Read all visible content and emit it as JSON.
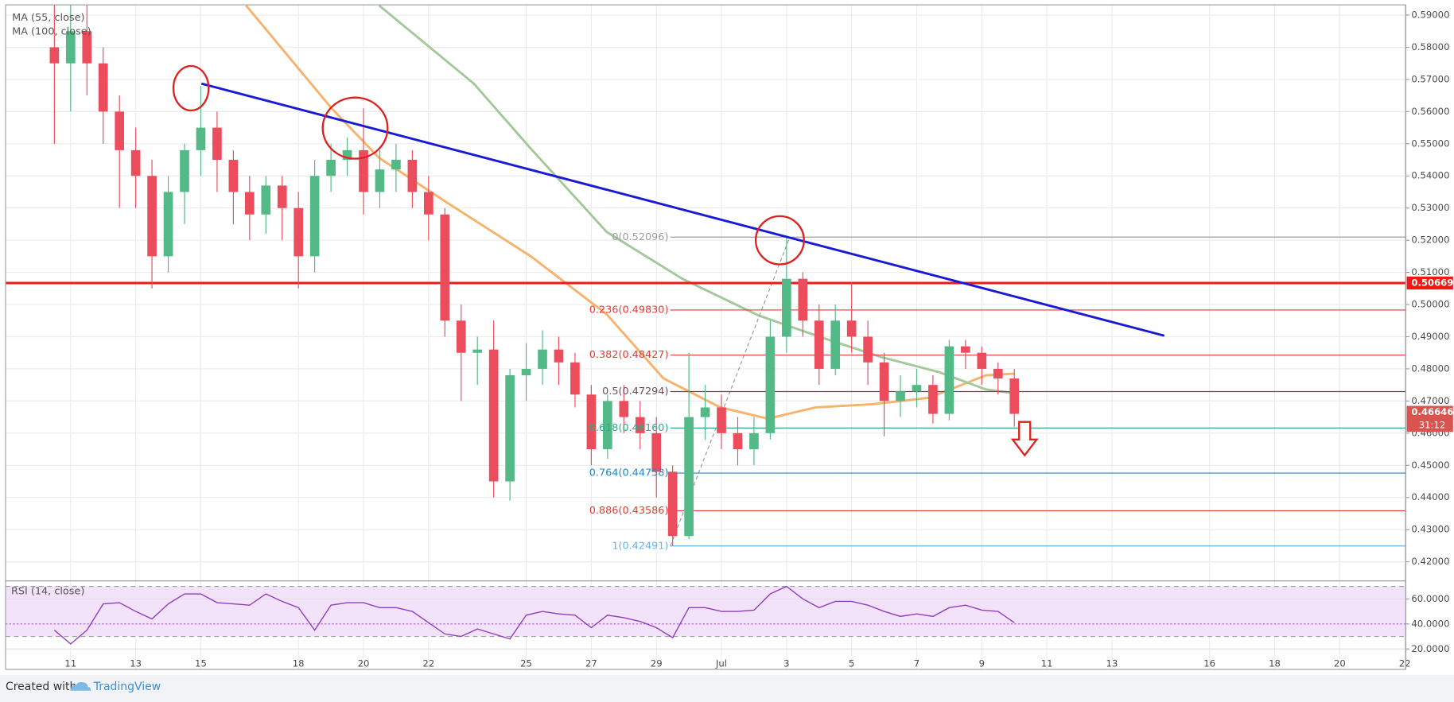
{
  "ui": {
    "footer_prefix": "Created with",
    "footer_brand": "TradingView"
  },
  "chart_data": {
    "type": "candlestick",
    "xlim": [
      9,
      52.03
    ],
    "xticks": [
      11,
      13,
      15,
      18,
      20,
      22,
      25,
      27,
      29,
      {
        "value": 31,
        "label": "Jul"
      },
      {
        "value": 33,
        "label": "3"
      },
      {
        "value": 35,
        "label": "5"
      },
      {
        "value": 37,
        "label": "7"
      },
      {
        "value": 39,
        "label": "9"
      },
      {
        "value": 41,
        "label": "11"
      },
      {
        "value": 43,
        "label": "13"
      },
      {
        "value": 46,
        "label": "16"
      },
      {
        "value": 48,
        "label": "18"
      },
      {
        "value": 50,
        "label": "20"
      },
      {
        "value": 52,
        "label": "22"
      }
    ],
    "ylim": [
      0.4145,
      0.5932
    ],
    "yticks": [
      {
        "value": 0.59,
        "label": "0.59000"
      },
      {
        "value": 0.58,
        "label": "0.58000"
      },
      {
        "value": 0.57,
        "label": "0.57000"
      },
      {
        "value": 0.56,
        "label": "0.56000"
      },
      {
        "value": 0.55,
        "label": "0.55000"
      },
      {
        "value": 0.54,
        "label": "0.54000"
      },
      {
        "value": 0.53,
        "label": "0.53000"
      },
      {
        "value": 0.52,
        "label": "0.52000"
      },
      {
        "value": 0.51,
        "label": "0.51000"
      },
      {
        "value": 0.5,
        "label": "0.50000"
      },
      {
        "value": 0.49,
        "label": "0.49000"
      },
      {
        "value": 0.48,
        "label": "0.48000"
      },
      {
        "value": 0.47,
        "label": "0.47000"
      },
      {
        "value": 0.46,
        "label": "0.46000"
      },
      {
        "value": 0.45,
        "label": "0.45000"
      },
      {
        "value": 0.44,
        "label": "0.44000"
      },
      {
        "value": 0.43,
        "label": "0.43000"
      },
      {
        "value": 0.42,
        "label": "0.42000"
      }
    ],
    "grid": true,
    "up_color": "#53b987",
    "down_color": "#eb4d5c",
    "x": [
      10.5,
      11,
      11.5,
      12,
      12.5,
      13,
      13.5,
      14,
      14.5,
      15,
      15.5,
      16,
      16.5,
      17,
      17.5,
      18,
      18.5,
      19,
      19.5,
      20,
      20.5,
      21,
      21.5,
      22,
      22.5,
      23,
      23.5,
      24,
      24.5,
      25,
      25.5,
      26,
      26.5,
      27,
      27.5,
      28,
      28.5,
      29,
      29.5,
      30,
      30.5,
      31,
      31.5,
      32,
      32.5,
      33,
      33.5,
      34,
      34.5,
      35,
      35.5,
      36,
      36.5,
      37,
      37.5,
      38,
      38.5,
      39,
      39.5,
      40
    ],
    "open": [
      0.58,
      0.575,
      0.585,
      0.575,
      0.56,
      0.548,
      0.54,
      0.515,
      0.535,
      0.548,
      0.555,
      0.545,
      0.535,
      0.528,
      0.537,
      0.53,
      0.515,
      0.54,
      0.545,
      0.548,
      0.535,
      0.542,
      0.545,
      0.535,
      0.528,
      0.495,
      0.485,
      0.486,
      0.445,
      0.478,
      0.48,
      0.486,
      0.482,
      0.472,
      0.455,
      0.47,
      0.465,
      0.46,
      0.448,
      0.428,
      0.465,
      0.468,
      0.46,
      0.455,
      0.46,
      0.49,
      0.508,
      0.495,
      0.48,
      0.495,
      0.49,
      0.482,
      0.47,
      0.473,
      0.475,
      0.466,
      0.487,
      0.485,
      0.48,
      0.477
    ],
    "high": [
      0.595,
      0.6,
      0.595,
      0.58,
      0.565,
      0.555,
      0.545,
      0.54,
      0.55,
      0.568,
      0.56,
      0.548,
      0.54,
      0.54,
      0.54,
      0.535,
      0.545,
      0.55,
      0.552,
      0.561,
      0.548,
      0.55,
      0.548,
      0.54,
      0.53,
      0.5,
      0.49,
      0.495,
      0.48,
      0.488,
      0.492,
      0.49,
      0.485,
      0.475,
      0.472,
      0.475,
      0.47,
      0.465,
      0.45,
      0.485,
      0.475,
      0.472,
      0.465,
      0.465,
      0.495,
      0.521,
      0.51,
      0.5,
      0.5,
      0.507,
      0.495,
      0.485,
      0.478,
      0.48,
      0.478,
      0.489,
      0.489,
      0.487,
      0.482,
      0.48
    ],
    "low": [
      0.55,
      0.56,
      0.565,
      0.55,
      0.53,
      0.53,
      0.505,
      0.51,
      0.525,
      0.54,
      0.535,
      0.525,
      0.52,
      0.522,
      0.52,
      0.505,
      0.51,
      0.535,
      0.54,
      0.528,
      0.53,
      0.535,
      0.53,
      0.52,
      0.49,
      0.47,
      0.475,
      0.44,
      0.439,
      0.47,
      0.475,
      0.475,
      0.468,
      0.45,
      0.452,
      0.46,
      0.455,
      0.44,
      0.425,
      0.427,
      0.458,
      0.455,
      0.45,
      0.45,
      0.458,
      0.485,
      0.49,
      0.475,
      0.478,
      0.485,
      0.475,
      0.459,
      0.465,
      0.468,
      0.463,
      0.464,
      0.48,
      0.475,
      0.472,
      0.462
    ],
    "close": [
      0.575,
      0.585,
      0.575,
      0.56,
      0.548,
      0.54,
      0.515,
      0.535,
      0.548,
      0.555,
      0.545,
      0.535,
      0.528,
      0.537,
      0.53,
      0.515,
      0.54,
      0.545,
      0.548,
      0.535,
      0.542,
      0.545,
      0.535,
      0.528,
      0.495,
      0.485,
      0.486,
      0.445,
      0.478,
      0.48,
      0.486,
      0.482,
      0.472,
      0.455,
      0.47,
      0.465,
      0.46,
      0.448,
      0.428,
      0.465,
      0.468,
      0.46,
      0.455,
      0.46,
      0.49,
      0.508,
      0.495,
      0.48,
      0.495,
      0.49,
      0.482,
      0.47,
      0.473,
      0.475,
      0.466,
      0.487,
      0.485,
      0.48,
      0.477,
      0.466
    ],
    "overlays": [
      {
        "name": "MA (55, close)",
        "color": "#f7b26e",
        "x": [
          16.39,
          19.02,
          20.48,
          22.52,
          25.14,
          27.47,
          29.22,
          30.97,
          32.43,
          33.89,
          35.64,
          37.38,
          39.13,
          40
        ],
        "values": [
          0.593,
          0.561,
          0.5456,
          0.532,
          0.515,
          0.497,
          0.477,
          0.468,
          0.4645,
          0.468,
          0.469,
          0.471,
          0.478,
          0.4785
        ]
      },
      {
        "name": "MA (100, close)",
        "color": "#a3c99a",
        "x": [
          20.48,
          23.39,
          25.14,
          27.47,
          29.8,
          32.14,
          34.18,
          35.93,
          37.68,
          39.13,
          40
        ],
        "values": [
          0.593,
          0.5687,
          0.5485,
          0.5226,
          0.508,
          0.4966,
          0.4894,
          0.4836,
          0.479,
          0.4736,
          0.4724
        ]
      }
    ],
    "trendline": {
      "color": "#1a1ad6",
      "x": [
        15.02,
        44.61
      ],
      "values": [
        0.5687,
        0.4903
      ]
    },
    "horizontal_line": {
      "value": 0.50669,
      "label": "0.50669",
      "color": "#f21818"
    },
    "last_price": {
      "value": 0.46646,
      "label": "0.46646",
      "countdown": "31:12",
      "color": "#d9534f"
    },
    "fibonacci": {
      "x": [
        29.43,
        33.1
      ],
      "values": [
        0.42491,
        0.52096
      ],
      "levels": [
        {
          "value": 0.52096,
          "label": "0(0.52096)",
          "color": "#9e9e9e"
        },
        {
          "value": 0.4983,
          "label": "0.236(0.49830)",
          "color": "#e53935"
        },
        {
          "value": 0.48427,
          "label": "0.382(0.48427)",
          "color": "#e53935"
        },
        {
          "value": 0.47294,
          "label": "0.5(0.47294)",
          "color": "#6d4c5a"
        },
        {
          "value": 0.4616,
          "label": "0.618(0.46160)",
          "color": "#26b08c"
        },
        {
          "value": 0.44758,
          "label": "0.764(0.44758)",
          "color": "#1e88c8"
        },
        {
          "value": 0.43586,
          "label": "0.886(0.43586)",
          "color": "#e53935"
        },
        {
          "value": 0.42491,
          "label": "1(0.42491)",
          "color": "#64b5e6"
        }
      ]
    },
    "rsi": {
      "name": "RSI (14, close)",
      "color": "#8e3fbf",
      "values": [
        35,
        24,
        35,
        56,
        57,
        50,
        44,
        56,
        64,
        64,
        57,
        56,
        55,
        64,
        58,
        53,
        35,
        55,
        57,
        57,
        53,
        53,
        50,
        41,
        32,
        30,
        36,
        32,
        28,
        47,
        50,
        48,
        47,
        37,
        47,
        45,
        42,
        37,
        29,
        53,
        53,
        50,
        50,
        51,
        64,
        70,
        60,
        53,
        58,
        58,
        55,
        50,
        46,
        48,
        46,
        53,
        55,
        51,
        50,
        41
      ],
      "ylim": [
        14.8,
        73.3
      ],
      "yticks": [
        {
          "value": 20,
          "label": "20.0000"
        },
        {
          "value": 40,
          "label": "40.0000"
        },
        {
          "value": 60,
          "label": "60.0000"
        }
      ],
      "band": [
        30,
        70
      ]
    }
  }
}
